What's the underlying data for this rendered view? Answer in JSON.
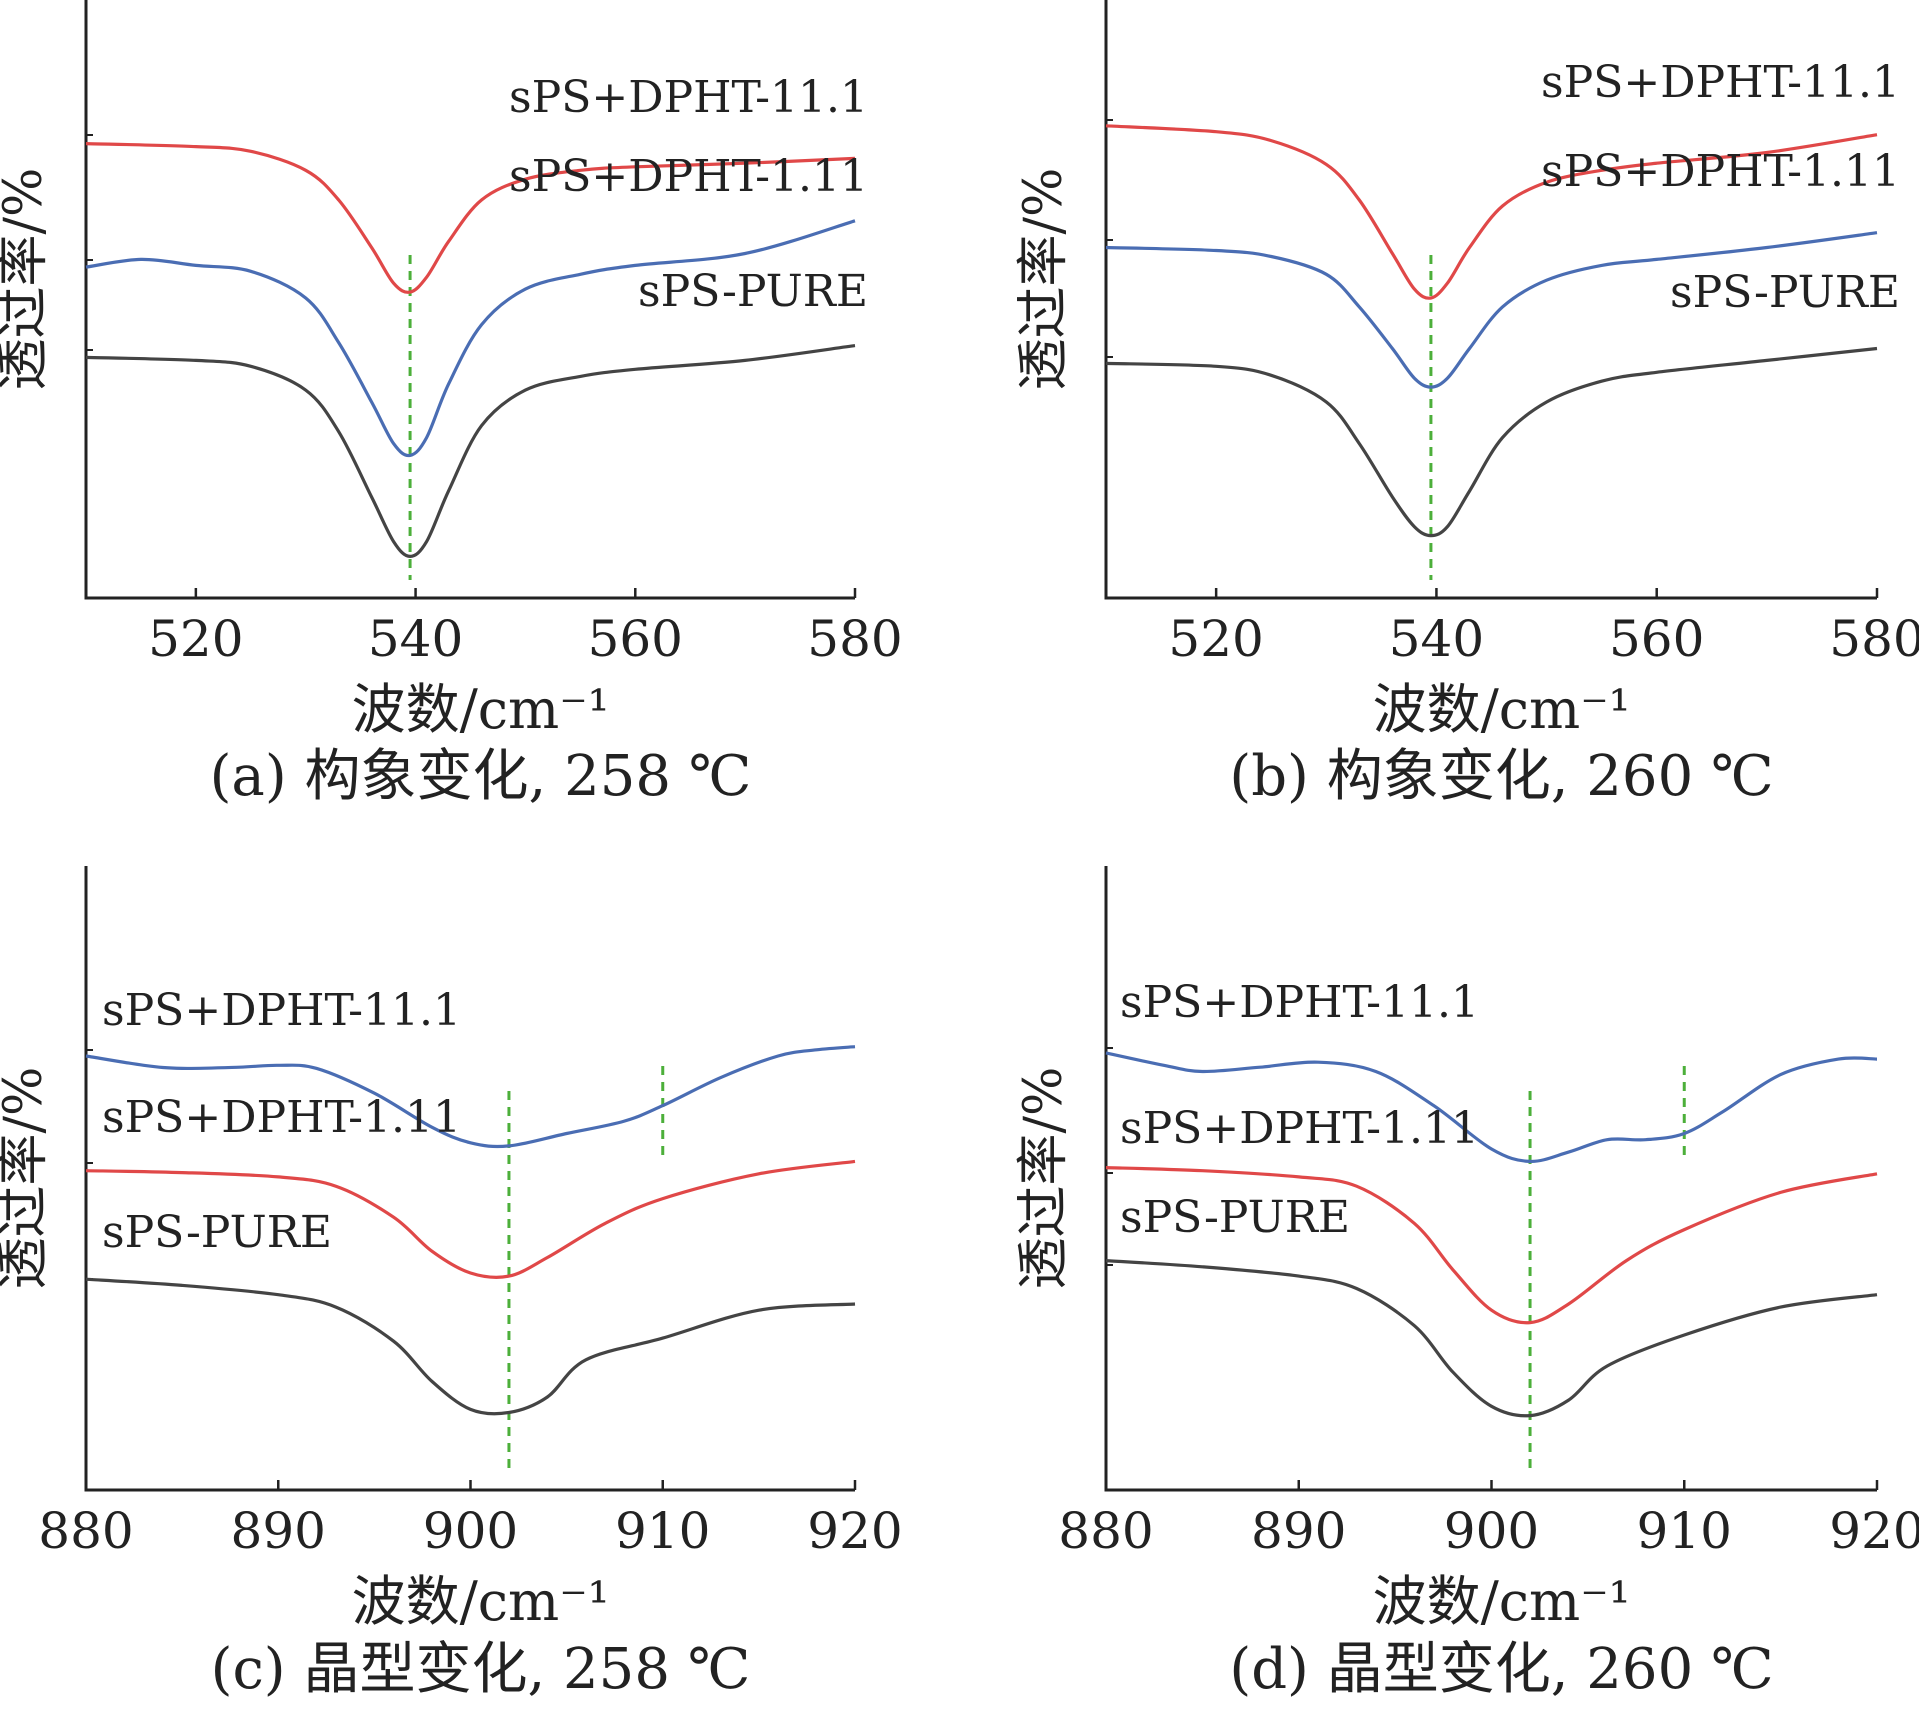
{
  "colors": {
    "axis": "#222222",
    "guide": "#4caf3a",
    "red": "#e04848",
    "blue": "#4a6db3",
    "dark": "#444444"
  },
  "chart_data": [
    {
      "type": "line",
      "panel": "a",
      "caption": "(a) 构象变化, 258 ℃",
      "xlabel": "波数/cm⁻¹",
      "ylabel": "透过率/%",
      "xlim": [
        510,
        580
      ],
      "xticks": [
        520,
        540,
        560,
        580
      ],
      "ylim": [
        0,
        100
      ],
      "guides": [
        539.5
      ],
      "series": [
        {
          "name": "sPS+DPHT-11.1",
          "color": "red",
          "x": [
            510,
            520,
            525,
            530,
            533,
            536,
            538,
            539.5,
            541,
            543,
            546,
            550,
            555,
            560,
            570,
            580
          ],
          "y": [
            76.5,
            76,
            75.2,
            72,
            67,
            59,
            53,
            51.5,
            54,
            60,
            67,
            70.5,
            72,
            72.6,
            73.2,
            74
          ]
        },
        {
          "name": "sPS+DPHT-1.11",
          "color": "blue",
          "x": [
            510,
            515,
            520,
            525,
            530,
            533,
            536,
            538,
            539.5,
            541,
            543,
            546,
            550,
            555,
            560,
            570,
            580
          ],
          "y": [
            55.7,
            57,
            56,
            55,
            50.5,
            43,
            33,
            26,
            24,
            27,
            36,
            46,
            52,
            54.5,
            56,
            58,
            63.5
          ]
        },
        {
          "name": "sPS-PURE",
          "color": "dark",
          "x": [
            510,
            520,
            525,
            530,
            533,
            536,
            538,
            539.5,
            541,
            543,
            546,
            550,
            555,
            560,
            570,
            580
          ],
          "y": [
            40.5,
            40,
            39,
            35,
            28,
            17,
            9.5,
            7,
            9.5,
            18,
            29,
            35,
            37.3,
            38.5,
            40,
            42.5
          ]
        }
      ],
      "labels": [
        "sPS+DPHT-11.1",
        "sPS+DPHT-1.11",
        "sPS-PURE"
      ]
    },
    {
      "type": "line",
      "panel": "b",
      "caption": "(b) 构象变化, 260 ℃",
      "xlabel": "波数/cm⁻¹",
      "ylabel": "透过率/%",
      "xlim": [
        510,
        580
      ],
      "xticks": [
        520,
        540,
        560,
        580
      ],
      "ylim": [
        0,
        100
      ],
      "guides": [
        539.5
      ],
      "series": [
        {
          "name": "sPS+DPHT-11.1",
          "color": "red",
          "x": [
            510,
            520,
            525,
            530,
            533,
            536,
            538,
            539.5,
            541,
            543,
            546,
            550,
            555,
            560,
            570,
            580
          ],
          "y": [
            79.5,
            78.5,
            77,
            73,
            67,
            58,
            52,
            50.5,
            53,
            59,
            66,
            70,
            72,
            73.2,
            75,
            78
          ]
        },
        {
          "name": "sPS+DPHT-1.11",
          "color": "blue",
          "x": [
            510,
            520,
            525,
            530,
            533,
            536,
            538,
            539.5,
            541,
            543,
            546,
            550,
            555,
            560,
            570,
            580
          ],
          "y": [
            59,
            58.5,
            57.5,
            54.5,
            49,
            42,
            37,
            35.5,
            37,
            42,
            49,
            53.5,
            56,
            57,
            59,
            61.5
          ]
        },
        {
          "name": "sPS-PURE",
          "color": "dark",
          "x": [
            510,
            520,
            525,
            530,
            533,
            536,
            538,
            539.5,
            541,
            543,
            546,
            550,
            555,
            560,
            570,
            580
          ],
          "y": [
            39.5,
            39,
            37.5,
            33,
            26,
            17,
            12,
            10.5,
            12,
            18,
            27,
            33,
            36.5,
            38,
            40,
            42
          ]
        }
      ],
      "labels": [
        "sPS+DPHT-11.1",
        "sPS+DPHT-1.11",
        "sPS-PURE"
      ]
    },
    {
      "type": "line",
      "panel": "c",
      "caption": "(c) 晶型变化, 258 ℃",
      "xlabel": "波数/cm⁻¹",
      "ylabel": "透过率/%",
      "xlim": [
        880,
        920
      ],
      "xticks": [
        880,
        890,
        900,
        910,
        920
      ],
      "ylim": [
        0,
        100
      ],
      "guides": [
        902,
        910
      ],
      "series": [
        {
          "name": "sPS+DPHT-11.1",
          "color": "blue",
          "x": [
            880,
            883,
            885,
            888,
            890,
            892,
            895,
            898,
            900,
            902,
            905,
            908,
            910,
            913,
            916,
            918,
            920
          ],
          "y": [
            70,
            68.5,
            68,
            68.2,
            68.5,
            68,
            64,
            58.5,
            56,
            55.5,
            57.5,
            59.5,
            62,
            66.5,
            70,
            71,
            71.5
          ]
        },
        {
          "name": "sPS+DPHT-1.11",
          "color": "red",
          "x": [
            880,
            885,
            890,
            893,
            896,
            898,
            900,
            902,
            904,
            907,
            910,
            915,
            920
          ],
          "y": [
            51.5,
            51.2,
            50.5,
            49,
            44,
            38.5,
            35,
            34.5,
            37.5,
            43,
            47,
            51,
            53
          ]
        },
        {
          "name": "sPS-PURE",
          "color": "dark",
          "x": [
            880,
            885,
            890,
            893,
            896,
            898,
            900,
            902,
            904,
            906,
            910,
            915,
            920
          ],
          "y": [
            34,
            33,
            31.5,
            29.5,
            24,
            17.5,
            13,
            12.5,
            15,
            21,
            24.5,
            29,
            30
          ]
        }
      ],
      "labels": [
        "sPS+DPHT-11.1",
        "sPS+DPHT-1.11",
        "sPS-PURE"
      ]
    },
    {
      "type": "line",
      "panel": "d",
      "caption": "(d) 晶型变化, 260 ℃",
      "xlabel": "波数/cm⁻¹",
      "ylabel": "透过率/%",
      "xlim": [
        880,
        920
      ],
      "xticks": [
        880,
        890,
        900,
        910,
        920
      ],
      "ylim": [
        0,
        100
      ],
      "guides": [
        902,
        910
      ],
      "series": [
        {
          "name": "sPS+DPHT-11.1",
          "color": "blue",
          "x": [
            880,
            883,
            885,
            888,
            891,
            894,
            897,
            900,
            902,
            904,
            906,
            908,
            910,
            912,
            915,
            918,
            920
          ],
          "y": [
            70.5,
            68.5,
            67.5,
            68.2,
            69,
            67.5,
            62,
            55,
            53,
            54.5,
            56.5,
            56.5,
            57.5,
            61,
            67,
            69.5,
            69.5
          ]
        },
        {
          "name": "sPS+DPHT-1.11",
          "color": "red",
          "x": [
            880,
            885,
            890,
            893,
            896,
            898,
            900,
            902,
            904,
            907,
            910,
            915,
            920
          ],
          "y": [
            52,
            51.5,
            50.5,
            49,
            43,
            35.5,
            29,
            27,
            30,
            37,
            42,
            48,
            51
          ]
        },
        {
          "name": "sPS-PURE",
          "color": "dark",
          "x": [
            880,
            885,
            890,
            893,
            896,
            898,
            900,
            902,
            904,
            906,
            910,
            915,
            920
          ],
          "y": [
            37,
            36,
            34.5,
            32.5,
            26.5,
            19,
            13.5,
            12,
            14.5,
            20,
            25,
            29.5,
            31.5
          ]
        }
      ],
      "labels": [
        "sPS+DPHT-11.1",
        "sPS+DPHT-1.11",
        "sPS-PURE"
      ]
    }
  ]
}
